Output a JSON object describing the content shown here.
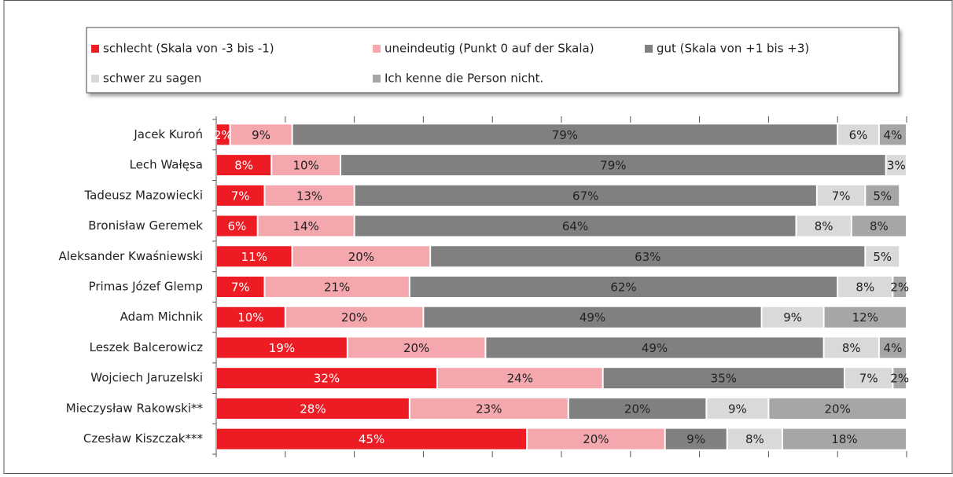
{
  "chart_data": {
    "type": "stacked_barh",
    "categories": [
      "Jacek Kuroń",
      "Lech Wałęsa",
      "Tadeusz Mazowiecki",
      "Bronisław Geremek",
      "Aleksander Kwaśniewski",
      "Primas Józef Glemp",
      "Adam Michnik",
      "Leszek Balcerowicz",
      "Wojciech Jaruzelski",
      "Mieczysław Rakowski**",
      "Czesław Kiszczak***"
    ],
    "series": [
      {
        "name": "schlecht (Skala von -3 bis -1)",
        "color": "#ed1c24",
        "label_color": "#ffffff",
        "values": [
          2,
          8,
          7,
          6,
          11,
          7,
          10,
          19,
          32,
          28,
          45
        ],
        "value_labels": [
          "2%",
          "8%",
          "7%",
          "6%",
          "11%",
          "7%",
          "10%",
          "19%",
          "32%",
          "28%",
          "45%"
        ]
      },
      {
        "name": "uneindeutig (Punkt 0 auf der Skala)",
        "color": "#f4a8ad",
        "label_color": "#222222",
        "values": [
          9,
          10,
          13,
          14,
          20,
          21,
          20,
          20,
          24,
          23,
          20
        ],
        "value_labels": [
          "9%",
          "10%",
          "13%",
          "14%",
          "20%",
          "21%",
          "20%",
          "20%",
          "24%",
          "23%",
          "20%"
        ]
      },
      {
        "name": "gut (Skala von +1 bis +3)",
        "color": "#808080",
        "label_color": "#222222",
        "values": [
          79,
          79,
          67,
          64,
          63,
          62,
          49,
          49,
          35,
          20,
          9
        ],
        "value_labels": [
          "79%",
          "79%",
          "67%",
          "64%",
          "63%",
          "62%",
          "49%",
          "49%",
          "35%",
          "20%",
          "9%"
        ]
      },
      {
        "name": "schwer zu sagen",
        "color": "#d9d9d9",
        "label_color": "#222222",
        "values": [
          6,
          3,
          7,
          8,
          5,
          8,
          9,
          8,
          7,
          9,
          8
        ],
        "value_labels": [
          "6%",
          "3%",
          "7%",
          "8%",
          "5%",
          "8%",
          "9%",
          "8%",
          "7%",
          "9%",
          "8%"
        ]
      },
      {
        "name": "Ich kenne die Person nicht.",
        "color": "#a6a6a6",
        "label_color": "#222222",
        "values": [
          4,
          null,
          5,
          8,
          null,
          2,
          12,
          4,
          2,
          20,
          18
        ],
        "value_labels": [
          "4%",
          null,
          "5%",
          "8%",
          null,
          "2%",
          "12%",
          "4%",
          "2%",
          "20%",
          "18%"
        ]
      }
    ],
    "xlim": [
      0,
      100
    ],
    "xticks": [
      0,
      10,
      20,
      30,
      40,
      50,
      60,
      70,
      80,
      90,
      100
    ]
  }
}
